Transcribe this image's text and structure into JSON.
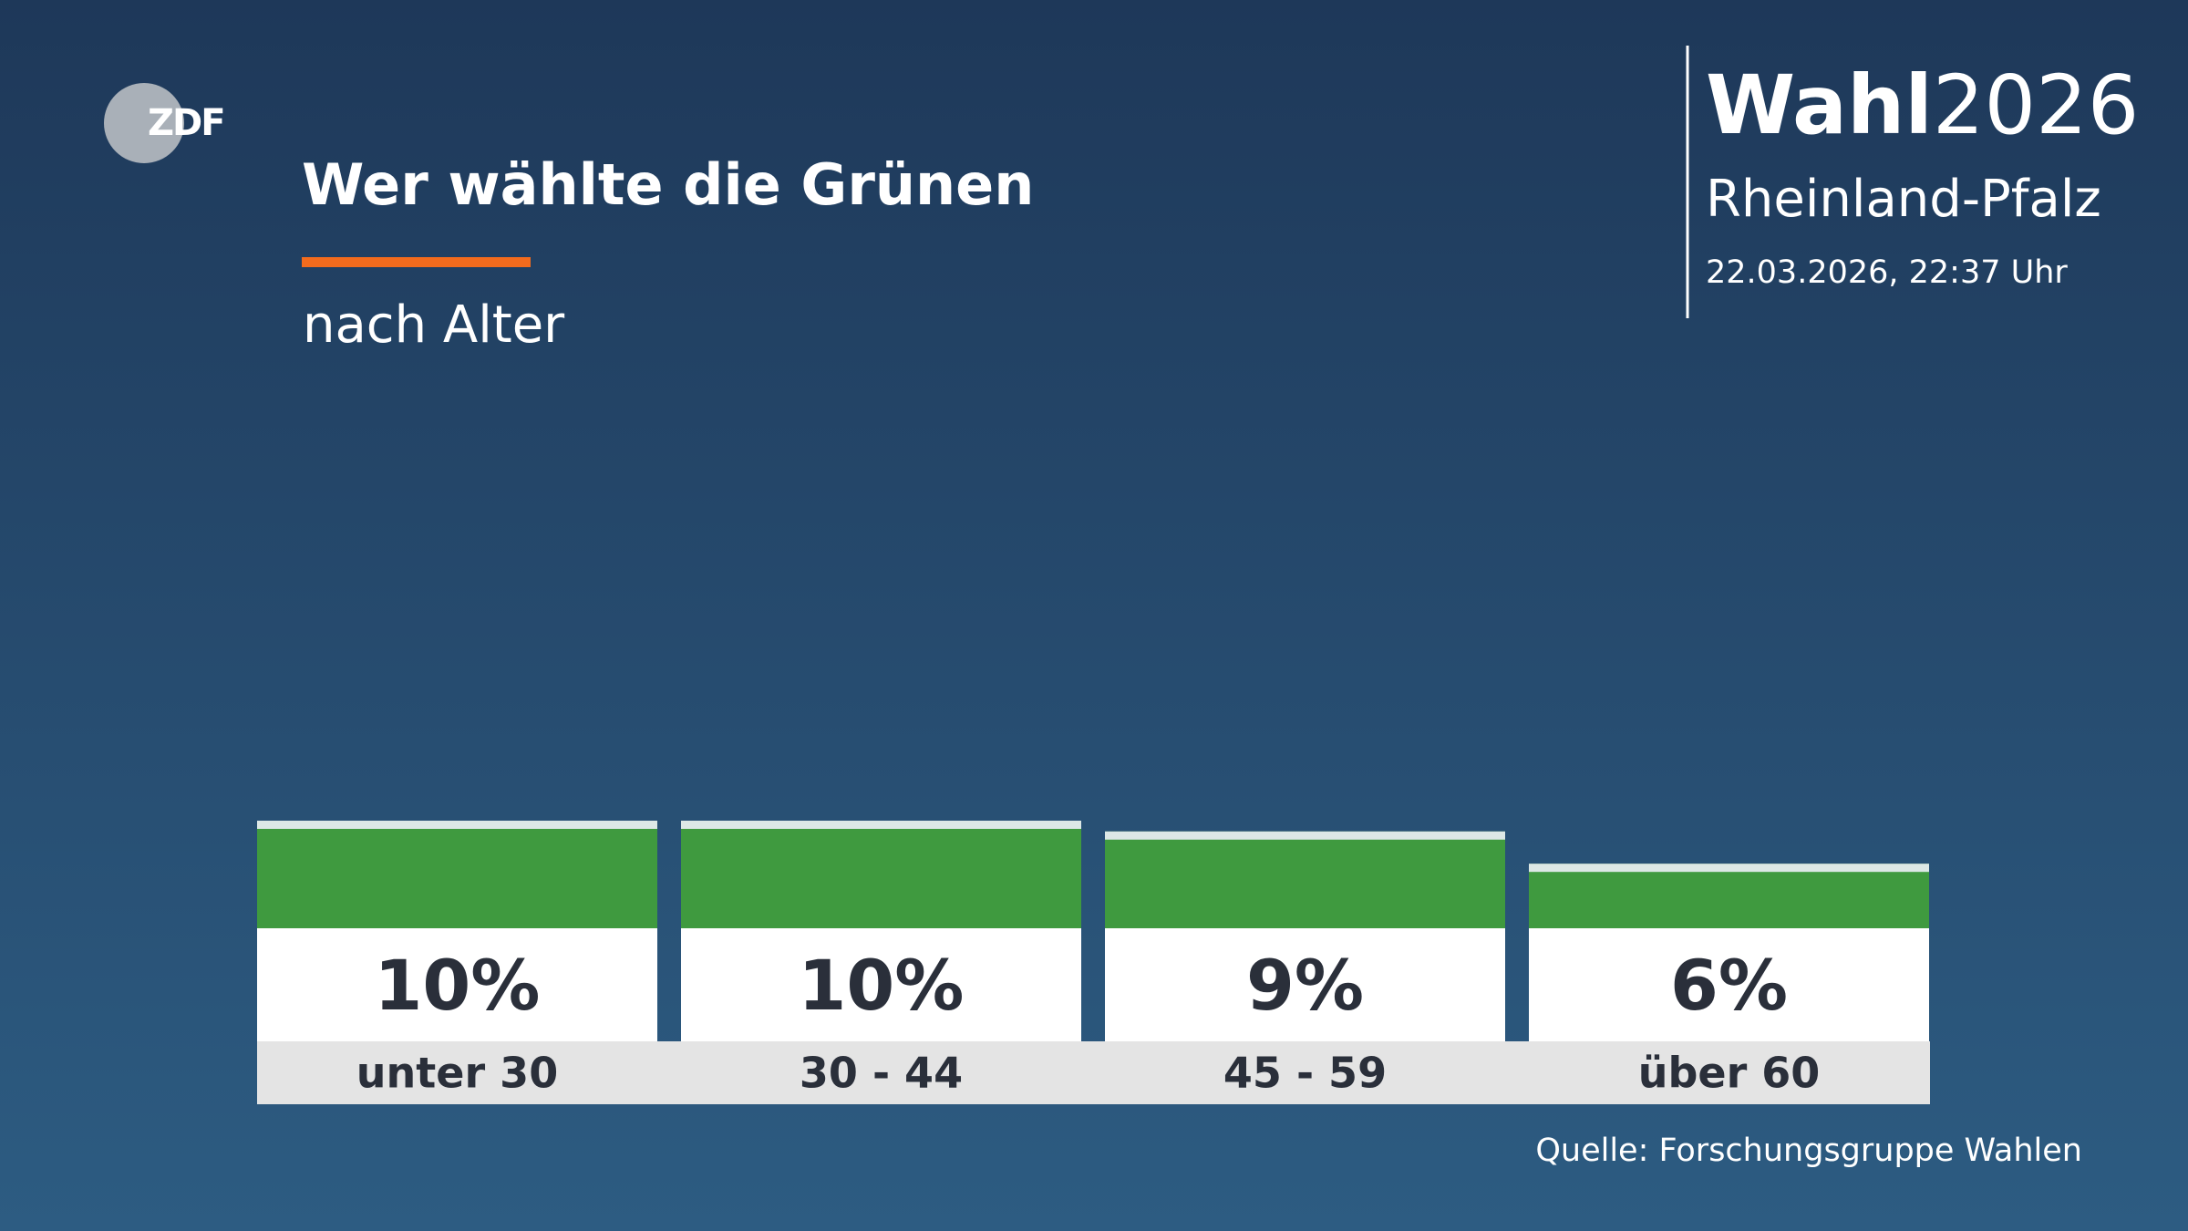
{
  "logo": "ZDF",
  "brand": {
    "name": "Wahl",
    "year": "2026",
    "region": "Rheinland-Pfalz",
    "timestamp": "22.03.2026, 22:37 Uhr"
  },
  "chart_data": {
    "type": "bar",
    "title": "Wer wählte die Grünen",
    "subtitle": "nach Alter",
    "categories": [
      "unter 30",
      "30 - 44",
      "45 - 59",
      "über 60"
    ],
    "values": [
      10,
      10,
      9,
      6
    ],
    "value_labels": [
      "10%",
      "10%",
      "9%",
      "6%"
    ],
    "color": "#3f9a3f",
    "source": "Quelle: Forschungsgruppe Wahlen"
  }
}
